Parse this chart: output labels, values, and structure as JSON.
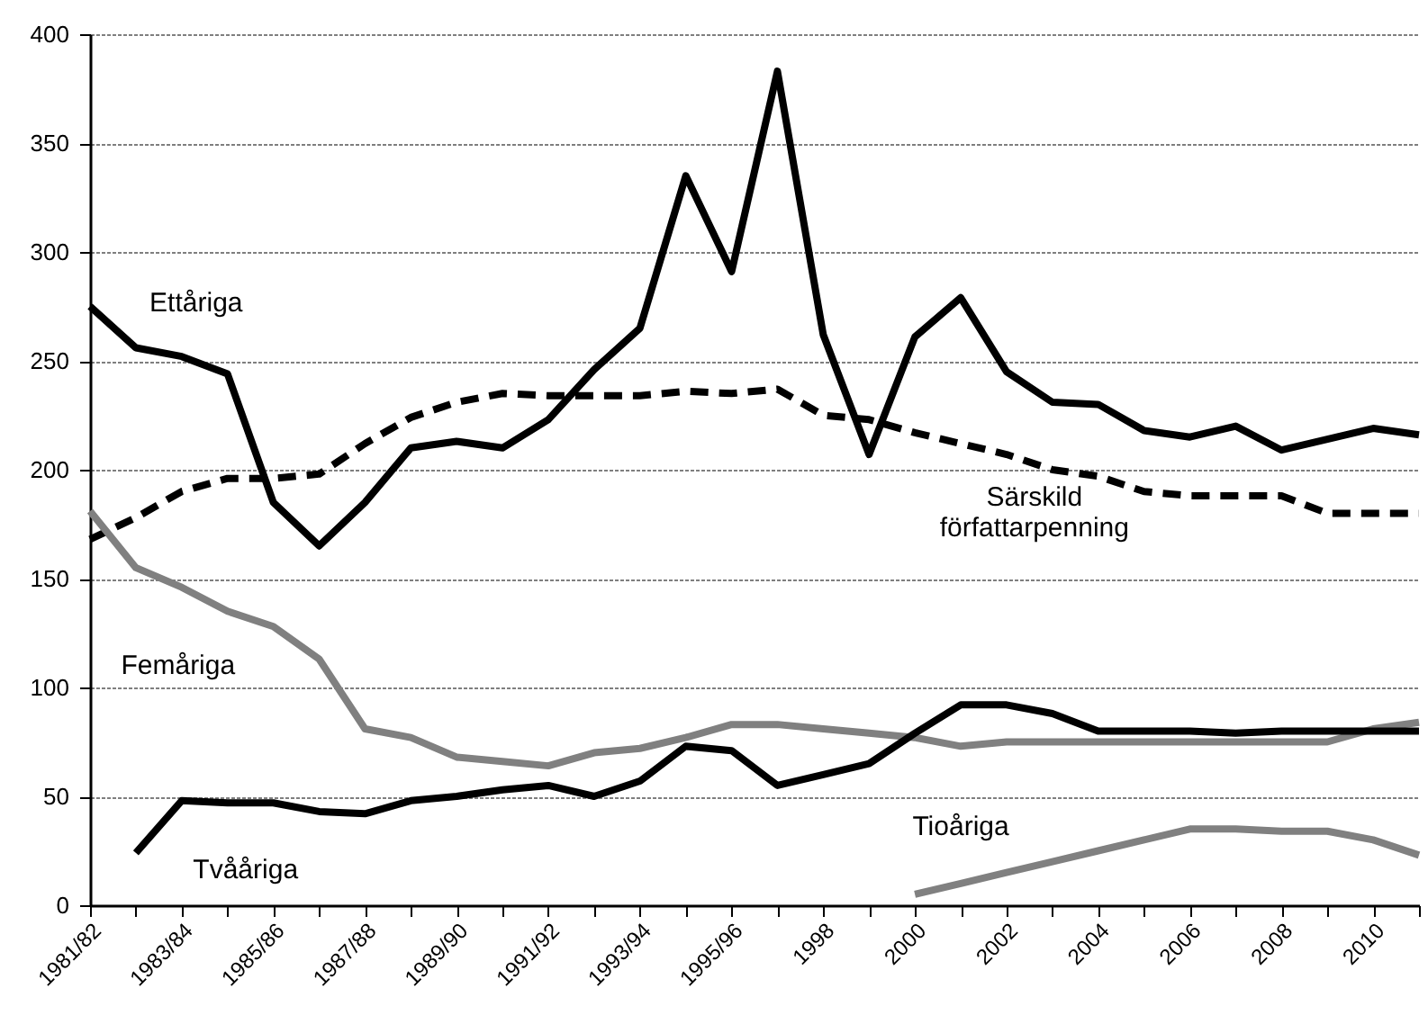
{
  "chart_data": {
    "type": "line",
    "categories": [
      "1981/82",
      null,
      "1983/84",
      null,
      "1985/86",
      null,
      "1987/88",
      null,
      "1989/90",
      null,
      "1991/92",
      null,
      "1993/94",
      null,
      "1995/96",
      null,
      "1998",
      null,
      "2000",
      null,
      "2002",
      null,
      "2004",
      null,
      "2006",
      null,
      "2008",
      null,
      "2010",
      null
    ],
    "series": [
      {
        "name": "Ettåriga",
        "color": "#000000",
        "line_style": "solid",
        "values": [
          275,
          256,
          252,
          244,
          185,
          165,
          185,
          210,
          213,
          210,
          223,
          246,
          265,
          335,
          291,
          383,
          262,
          207,
          261,
          279,
          245,
          231,
          230,
          218,
          215,
          220,
          209,
          214,
          219,
          216
        ]
      },
      {
        "name": "Särskild författarpenning",
        "color": "#000000",
        "line_style": "dashed",
        "values": [
          168,
          178,
          190,
          196,
          196,
          198,
          212,
          224,
          231,
          235,
          234,
          234,
          234,
          236,
          235,
          237,
          225,
          223,
          217,
          212,
          207,
          200,
          197,
          190,
          188,
          188,
          188,
          180,
          180,
          180
        ]
      },
      {
        "name": "Femåriga",
        "color": "#808080",
        "line_style": "solid",
        "values": [
          181,
          155,
          146,
          135,
          128,
          113,
          81,
          77,
          68,
          66,
          64,
          70,
          72,
          77,
          83,
          83,
          81,
          79,
          77,
          73,
          75,
          75,
          75,
          75,
          75,
          75,
          75,
          75,
          81,
          84
        ]
      },
      {
        "name": "Tvååriga",
        "color": "#000000",
        "line_style": "solid",
        "values": [
          null,
          24,
          48,
          47,
          47,
          43,
          42,
          48,
          50,
          53,
          55,
          50,
          57,
          73,
          71,
          55,
          60,
          65,
          79,
          92,
          92,
          88,
          80,
          80,
          80,
          79,
          80,
          80,
          80,
          80
        ]
      },
      {
        "name": "Tioåriga",
        "color": "#808080",
        "line_style": "solid",
        "values": [
          null,
          null,
          null,
          null,
          null,
          null,
          null,
          null,
          null,
          null,
          null,
          null,
          null,
          null,
          null,
          null,
          null,
          null,
          5,
          10,
          15,
          20,
          25,
          30,
          35,
          35,
          34,
          34,
          30,
          23
        ]
      }
    ],
    "ylim": [
      0,
      400
    ],
    "yticks": [
      0,
      50,
      100,
      150,
      200,
      250,
      300,
      350,
      400
    ],
    "grid": "y",
    "legend": false,
    "marker": "none"
  }
}
